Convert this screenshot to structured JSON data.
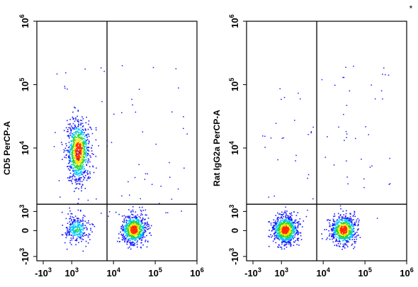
{
  "chart_data": [
    {
      "type": "scatter",
      "ylabel": "CD5 PerCP-A",
      "xlabel": "",
      "x_scale": "biexponential",
      "y_scale": "biexponential",
      "x_ticks": [
        {
          "base": "-10",
          "exp": "3",
          "value": -1000
        },
        {
          "base": "10",
          "exp": "3",
          "value": 1000
        },
        {
          "base": "10",
          "exp": "4",
          "value": 10000
        },
        {
          "base": "10",
          "exp": "5",
          "value": 100000
        },
        {
          "base": "10",
          "exp": "6",
          "value": 1000000
        }
      ],
      "y_ticks": [
        {
          "base": "-10",
          "exp": "3",
          "value": -1000
        },
        {
          "base": "0",
          "exp": "",
          "value": 0
        },
        {
          "base": "10",
          "exp": "3",
          "value": 1000
        },
        {
          "base": "10",
          "exp": "4",
          "value": 10000
        },
        {
          "base": "10",
          "exp": "5",
          "value": 100000
        },
        {
          "base": "10",
          "exp": "6",
          "value": 1000000
        }
      ],
      "quadrant_gate": {
        "x": 7000,
        "y": 1300
      },
      "populations": [
        {
          "center_x": 1400,
          "center_y": 9000,
          "density": "high",
          "points": 900
        },
        {
          "center_x": 30000,
          "center_y": 80,
          "density": "high",
          "points": 750
        },
        {
          "center_x": 1300,
          "center_y": 80,
          "density": "medium",
          "points": 280
        }
      ],
      "grid": false
    },
    {
      "type": "scatter",
      "ylabel": "Rat IgG2a PerCP-A",
      "xlabel": "",
      "x_scale": "biexponential",
      "y_scale": "biexponential",
      "x_ticks": [
        {
          "base": "-10",
          "exp": "3",
          "value": -1000
        },
        {
          "base": "10",
          "exp": "3",
          "value": 1000
        },
        {
          "base": "10",
          "exp": "4",
          "value": 10000
        },
        {
          "base": "10",
          "exp": "5",
          "value": 100000
        },
        {
          "base": "10",
          "exp": "6",
          "value": 1000000
        }
      ],
      "y_ticks": [
        {
          "base": "-10",
          "exp": "3",
          "value": -1000
        },
        {
          "base": "0",
          "exp": "",
          "value": 0
        },
        {
          "base": "10",
          "exp": "3",
          "value": 1000
        },
        {
          "base": "10",
          "exp": "4",
          "value": 10000
        },
        {
          "base": "10",
          "exp": "5",
          "value": 100000
        },
        {
          "base": "10",
          "exp": "6",
          "value": 1000000
        }
      ],
      "quadrant_gate": {
        "x": 7000,
        "y": 1300
      },
      "populations": [
        {
          "center_x": 1200,
          "center_y": 60,
          "density": "high",
          "points": 850
        },
        {
          "center_x": 30000,
          "center_y": 60,
          "density": "high",
          "points": 700
        }
      ],
      "grid": false
    }
  ],
  "corner_mark": "*",
  "colors": {
    "low": "#1a1aff",
    "mid_low": "#00c8ff",
    "mid": "#29d629",
    "mid_high": "#f5e600",
    "high": "#ff2a00",
    "axis": "#000000"
  }
}
